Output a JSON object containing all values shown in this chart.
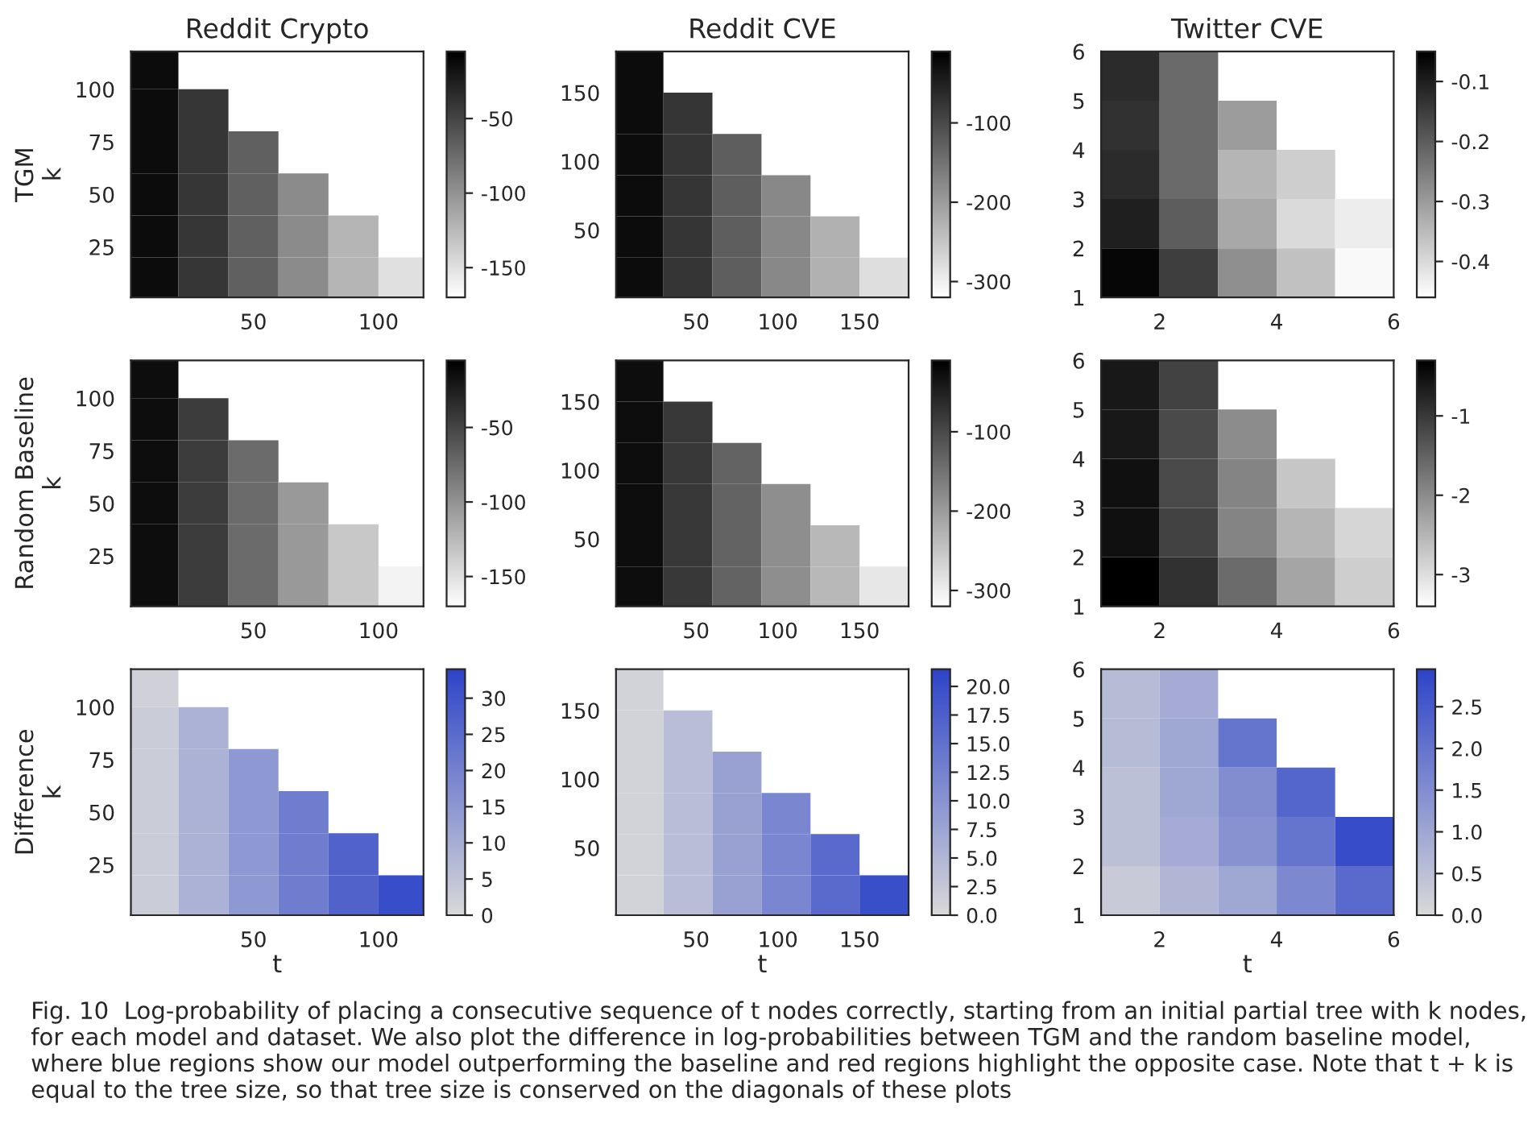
{
  "chart_data": [
    {
      "type": "heatmap",
      "title": "Reddit Crypto",
      "ylabel": "TGM\nk",
      "x": [
        10,
        30,
        50,
        70,
        90,
        110
      ],
      "y": [
        110,
        90,
        70,
        50,
        30,
        10
      ],
      "colors": [
        "#ffffff",
        "#000000"
      ],
      "cells": [
        [
          -13,
          null,
          null,
          null,
          null,
          null
        ],
        [
          -13,
          -40,
          null,
          null,
          null,
          null
        ],
        [
          -13,
          -40,
          -67,
          null,
          null,
          null
        ],
        [
          -13,
          -40,
          -67,
          -95,
          null,
          null
        ],
        [
          -13,
          -40,
          -67,
          -95,
          -122,
          null
        ],
        [
          -13,
          -40,
          -67,
          -95,
          -122,
          -150
        ]
      ],
      "xlim": [
        1,
        118
      ],
      "ylim": [
        1,
        118
      ],
      "xticks": [
        50,
        100
      ],
      "yticks": [
        25,
        50,
        75,
        100
      ],
      "clim": [
        -170,
        -5
      ],
      "cticks": [
        -50,
        -100,
        -150
      ]
    },
    {
      "type": "heatmap",
      "title": "Reddit CVE",
      "x": [
        15,
        45,
        75,
        105,
        135,
        165
      ],
      "y": [
        165,
        135,
        105,
        75,
        45,
        15
      ],
      "colors": [
        "#ffffff",
        "#000000"
      ],
      "cells": [
        [
          -25,
          null,
          null,
          null,
          null,
          null
        ],
        [
          -25,
          -75,
          null,
          null,
          null,
          null
        ],
        [
          -25,
          -75,
          -125,
          null,
          null,
          null
        ],
        [
          -25,
          -75,
          -125,
          -175,
          null,
          null
        ],
        [
          -25,
          -75,
          -125,
          -175,
          -225,
          null
        ],
        [
          -25,
          -75,
          -125,
          -175,
          -225,
          -280
        ]
      ],
      "xlim": [
        1,
        180
      ],
      "ylim": [
        1,
        180
      ],
      "xticks": [
        50,
        100,
        150
      ],
      "yticks": [
        50,
        100,
        150
      ],
      "clim": [
        -320,
        -10
      ],
      "cticks": [
        -100,
        -200,
        -300
      ]
    },
    {
      "type": "heatmap",
      "title": "Twitter CVE",
      "x": [
        1.5,
        2.5,
        3.5,
        4.5,
        5.5
      ],
      "y": [
        5.5,
        4.5,
        3.5,
        2.5,
        1.5
      ],
      "colors": [
        "#ffffff",
        "#000000"
      ],
      "cells": [
        [
          -0.12,
          -0.22,
          null,
          null,
          null
        ],
        [
          -0.13,
          -0.22,
          -0.3,
          null,
          null
        ],
        [
          -0.12,
          -0.22,
          -0.34,
          -0.38,
          null
        ],
        [
          -0.1,
          -0.2,
          -0.32,
          -0.4,
          -0.43
        ],
        [
          -0.06,
          -0.15,
          -0.28,
          -0.36,
          -0.45
        ]
      ],
      "xlim": [
        1,
        6
      ],
      "ylim": [
        1,
        6
      ],
      "xticks": [
        2,
        4,
        6
      ],
      "yticks": [
        1,
        2,
        3,
        4,
        5,
        6
      ],
      "clim": [
        -0.46,
        -0.05
      ],
      "cticks": [
        -0.1,
        -0.2,
        -0.3,
        -0.4
      ]
    },
    {
      "type": "heatmap",
      "ylabel": "Random Baseline\nk",
      "x": [
        10,
        30,
        50,
        70,
        90,
        110
      ],
      "y": [
        110,
        90,
        70,
        50,
        30,
        10
      ],
      "colors": [
        "#ffffff",
        "#000000"
      ],
      "cells": [
        [
          -14,
          null,
          null,
          null,
          null,
          null
        ],
        [
          -14,
          -44,
          null,
          null,
          null,
          null
        ],
        [
          -14,
          -44,
          -74,
          null,
          null,
          null
        ],
        [
          -14,
          -44,
          -74,
          -104,
          null,
          null
        ],
        [
          -14,
          -44,
          -74,
          -104,
          -134,
          null
        ],
        [
          -14,
          -44,
          -74,
          -104,
          -134,
          -162
        ]
      ],
      "xlim": [
        1,
        118
      ],
      "ylim": [
        1,
        118
      ],
      "xticks": [
        50,
        100
      ],
      "yticks": [
        25,
        50,
        75,
        100
      ],
      "clim": [
        -170,
        -5
      ],
      "cticks": [
        -50,
        -100,
        -150
      ]
    },
    {
      "type": "heatmap",
      "x": [
        15,
        45,
        75,
        105,
        135,
        165
      ],
      "y": [
        165,
        135,
        105,
        75,
        45,
        15
      ],
      "colors": [
        "#ffffff",
        "#000000"
      ],
      "cells": [
        [
          -26,
          null,
          null,
          null,
          null,
          null
        ],
        [
          -26,
          -78,
          null,
          null,
          null,
          null
        ],
        [
          -26,
          -78,
          -130,
          null,
          null,
          null
        ],
        [
          -26,
          -78,
          -130,
          -182,
          null,
          null
        ],
        [
          -26,
          -78,
          -130,
          -182,
          -234,
          null
        ],
        [
          -26,
          -78,
          -130,
          -182,
          -234,
          -290
        ]
      ],
      "xlim": [
        1,
        180
      ],
      "ylim": [
        1,
        180
      ],
      "xticks": [
        50,
        100,
        150
      ],
      "yticks": [
        50,
        100,
        150
      ],
      "clim": [
        -320,
        -10
      ],
      "cticks": [
        -100,
        -200,
        -300
      ]
    },
    {
      "type": "heatmap",
      "x": [
        1.5,
        2.5,
        3.5,
        4.5,
        5.5
      ],
      "y": [
        5.5,
        4.5,
        3.5,
        2.5,
        1.5
      ],
      "colors": [
        "#ffffff",
        "#000000"
      ],
      "cells": [
        [
          -0.6,
          -1.1,
          null,
          null,
          null
        ],
        [
          -0.6,
          -1.2,
          -2.0,
          null,
          null
        ],
        [
          -0.5,
          -1.2,
          -1.9,
          -2.7,
          null
        ],
        [
          -0.5,
          -1.1,
          -1.9,
          -2.5,
          -2.9
        ],
        [
          -0.3,
          -0.9,
          -1.6,
          -2.3,
          -2.8
        ]
      ],
      "xlim": [
        1,
        6
      ],
      "ylim": [
        1,
        6
      ],
      "xticks": [
        2,
        4,
        6
      ],
      "yticks": [
        1,
        2,
        3,
        4,
        5,
        6
      ],
      "clim": [
        -3.4,
        -0.3
      ],
      "cticks": [
        -1,
        -2,
        -3
      ]
    },
    {
      "type": "heatmap",
      "ylabel": "Difference\nk",
      "xlabel": "t",
      "x": [
        10,
        30,
        50,
        70,
        90,
        110
      ],
      "y": [
        110,
        90,
        70,
        50,
        30,
        10
      ],
      "colors": [
        "#d9d9d9",
        "#2e44c8"
      ],
      "cells": [
        [
          2,
          null,
          null,
          null,
          null,
          null
        ],
        [
          3,
          9,
          null,
          null,
          null,
          null
        ],
        [
          3,
          9,
          15,
          null,
          null,
          null
        ],
        [
          3,
          9,
          15,
          21,
          null,
          null
        ],
        [
          3,
          9,
          15,
          21,
          27,
          null
        ],
        [
          3,
          9,
          15,
          21,
          27,
          32
        ]
      ],
      "xlim": [
        1,
        118
      ],
      "ylim": [
        1,
        118
      ],
      "xticks": [
        50,
        100
      ],
      "yticks": [
        25,
        50,
        75,
        100
      ],
      "clim": [
        0,
        34
      ],
      "cticks": [
        0,
        5,
        10,
        15,
        20,
        25,
        30
      ]
    },
    {
      "type": "heatmap",
      "xlabel": "t",
      "x": [
        15,
        45,
        75,
        105,
        135,
        165
      ],
      "y": [
        165,
        135,
        105,
        75,
        45,
        15
      ],
      "colors": [
        "#d9d9d9",
        "#2e44c8"
      ],
      "cells": [
        [
          1,
          null,
          null,
          null,
          null,
          null
        ],
        [
          1,
          4,
          null,
          null,
          null,
          null
        ],
        [
          1,
          4,
          8,
          null,
          null,
          null
        ],
        [
          1,
          4,
          8,
          12,
          null,
          null
        ],
        [
          1,
          4,
          8,
          12,
          16,
          null
        ],
        [
          1,
          4,
          8,
          12,
          16,
          20
        ]
      ],
      "xlim": [
        1,
        180
      ],
      "ylim": [
        1,
        180
      ],
      "xticks": [
        50,
        100,
        150
      ],
      "yticks": [
        50,
        100,
        150
      ],
      "clim": [
        0,
        21.5
      ],
      "cticks": [
        {
          "value": 0,
          "label": "0.0"
        },
        {
          "value": 2.5,
          "label": "2.5"
        },
        {
          "value": 5,
          "label": "5.0"
        },
        {
          "value": 7.5,
          "label": "7.5"
        },
        {
          "value": 10,
          "label": "10.0"
        },
        {
          "value": 12.5,
          "label": "12.5"
        },
        {
          "value": 15,
          "label": "15.0"
        },
        {
          "value": 17.5,
          "label": "17.5"
        },
        {
          "value": 20,
          "label": "20.0"
        }
      ]
    },
    {
      "type": "heatmap",
      "xlabel": "t",
      "x": [
        1.5,
        2.5,
        3.5,
        4.5,
        5.5
      ],
      "y": [
        5.5,
        4.5,
        3.5,
        2.5,
        1.5
      ],
      "colors": [
        "#d9d9d9",
        "#2e44c8"
      ],
      "cells": [
        [
          0.6,
          0.9,
          null,
          null,
          null
        ],
        [
          0.6,
          1.0,
          2.0,
          null,
          null
        ],
        [
          0.5,
          1.0,
          1.5,
          2.3,
          null
        ],
        [
          0.5,
          0.9,
          1.4,
          2.0,
          2.8
        ],
        [
          0.3,
          0.7,
          1.0,
          1.6,
          2.2
        ]
      ],
      "xlim": [
        1,
        6
      ],
      "ylim": [
        1,
        6
      ],
      "xticks": [
        2,
        4,
        6
      ],
      "yticks": [
        1,
        2,
        3,
        4,
        5,
        6
      ],
      "clim": [
        0,
        2.95
      ],
      "cticks": [
        {
          "value": 0,
          "label": "0.0"
        },
        {
          "value": 0.5,
          "label": "0.5"
        },
        {
          "value": 1,
          "label": "1.0"
        },
        {
          "value": 1.5,
          "label": "1.5"
        },
        {
          "value": 2,
          "label": "2.0"
        },
        {
          "value": 2.5,
          "label": "2.5"
        }
      ],
      "annotations": [
        "Fig. 10  Log-probability of placing a consecutive sequence of t nodes correctly, starting from an initial partial tree with k nodes, for each model and dataset. We also plot the difference in log-probabilities between TGM and the random baseline model, where blue regions show our model outperforming the baseline and red regions highlight the opposite case. Note that t + k is equal to the tree size, so that tree size is conserved on the diagonals of these plots"
      ]
    }
  ]
}
